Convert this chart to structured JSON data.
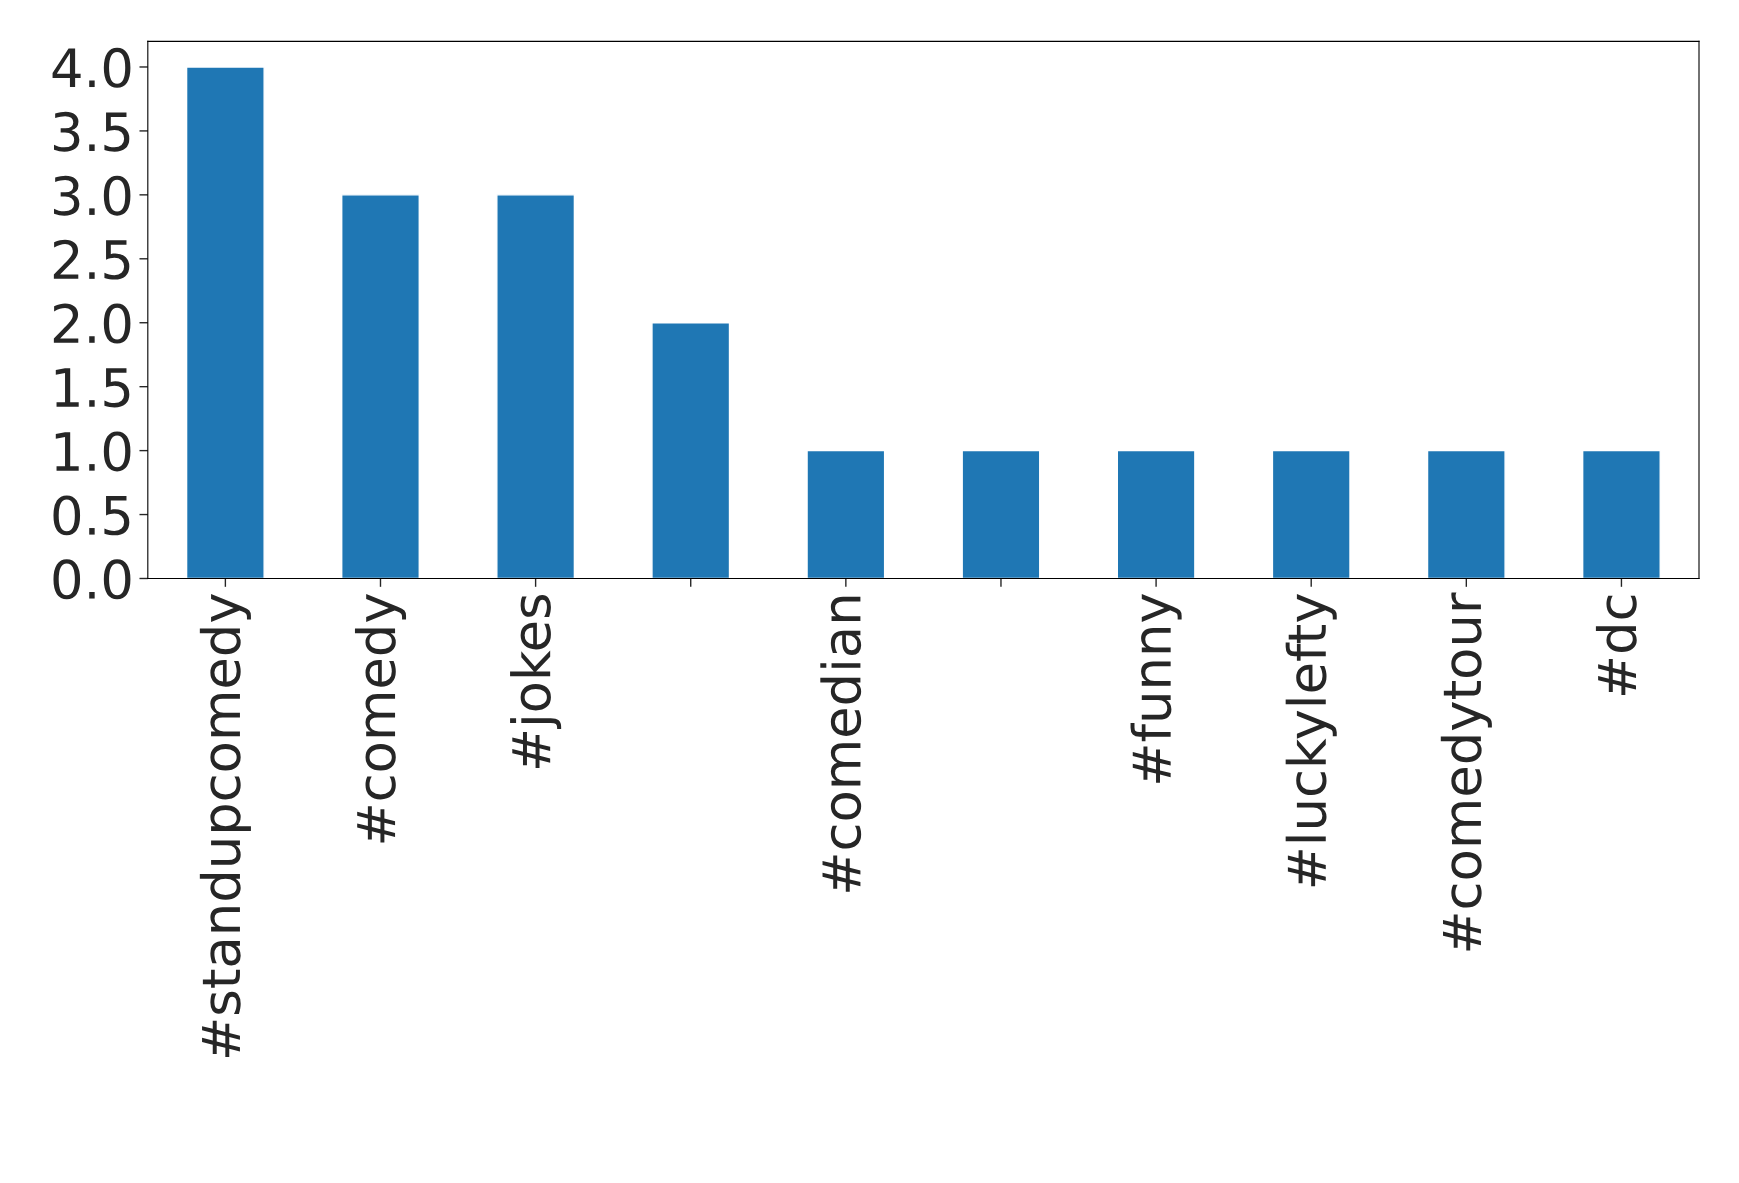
{
  "chart_data": {
    "type": "bar",
    "categories": [
      "#standupcomedy",
      "#comedy",
      "#jokes",
      null,
      "#comedian",
      null,
      "#funny",
      "#luckylefty",
      "#comedytour",
      "#dc"
    ],
    "values": [
      4,
      3,
      3,
      2,
      1,
      1,
      1,
      1,
      1,
      1
    ],
    "color": "#1f77b4",
    "ylim": [
      0,
      4.2
    ],
    "yticks": [
      {
        "value": 0,
        "label": "0.0"
      },
      {
        "value": 0.5,
        "label": "0.5"
      },
      {
        "value": 1,
        "label": "1.0"
      },
      {
        "value": 1.5,
        "label": "1.5"
      },
      {
        "value": 2,
        "label": "2.0"
      },
      {
        "value": 2.5,
        "label": "2.5"
      },
      {
        "value": 3,
        "label": "3.0"
      },
      {
        "value": 3.5,
        "label": "3.5"
      },
      {
        "value": 4,
        "label": "4.0"
      }
    ],
    "grid": false
  }
}
